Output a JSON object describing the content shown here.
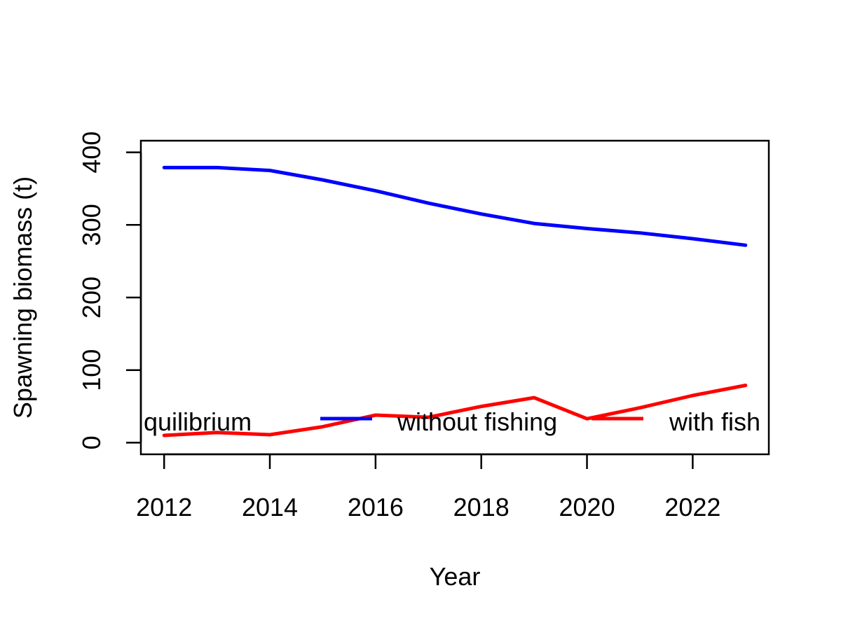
{
  "chart_data": {
    "type": "line",
    "title": "",
    "xlabel": "Year",
    "ylabel": "Spawning biomass (t)",
    "x": [
      2012,
      2013,
      2014,
      2015,
      2016,
      2017,
      2018,
      2019,
      2020,
      2021,
      2022,
      2023
    ],
    "xlim": [
      2011.56,
      2023.44
    ],
    "ylim": [
      -16,
      416
    ],
    "x_ticks": [
      "2012",
      "2014",
      "2016",
      "2018",
      "2020",
      "2022"
    ],
    "y_ticks": [
      "0",
      "100",
      "200",
      "300",
      "400"
    ],
    "grid": false,
    "legend_position": "bottom",
    "legend_title": "quilibrium",
    "series": [
      {
        "name": "without fishing",
        "color": "#0000FF",
        "values": [
          379,
          379,
          375,
          362,
          347,
          330,
          315,
          302,
          295,
          289,
          281,
          272
        ]
      },
      {
        "name": "with fish",
        "color": "#FF0000",
        "values": [
          10,
          14,
          11,
          22,
          38,
          35,
          50,
          62,
          33,
          48,
          65,
          79
        ]
      }
    ]
  }
}
